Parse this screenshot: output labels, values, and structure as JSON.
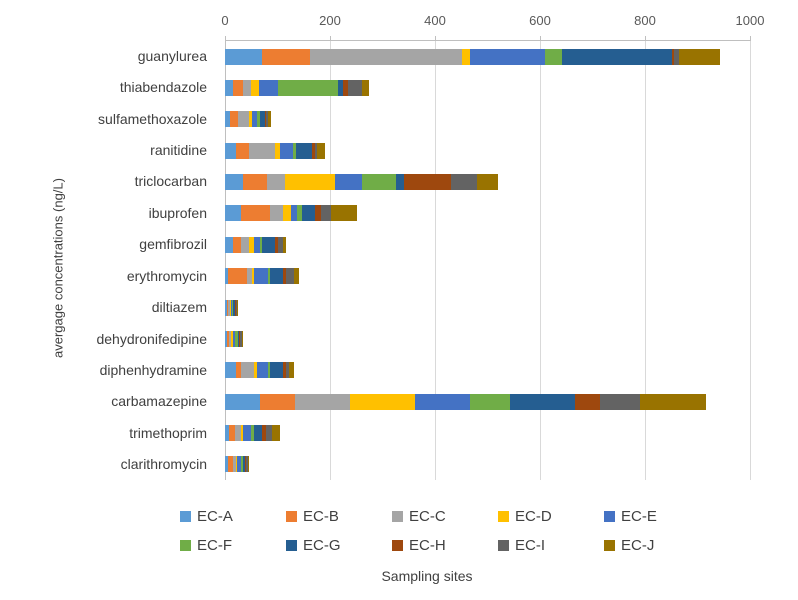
{
  "chart_data": {
    "type": "bar",
    "orientation": "horizontal-stacked",
    "title": "",
    "ylabel": "avergage concentrations (ng/L)",
    "xlabel": "Sampling sites",
    "xlim": [
      0,
      1000
    ],
    "x_ticks": [
      0,
      200,
      400,
      600,
      800,
      1000
    ],
    "grid": "vertical-major",
    "legend_position": "bottom",
    "categories": [
      "guanylurea",
      "thiabendazole",
      "sulfamethoxazole",
      "ranitidine",
      "triclocarban",
      "ibuprofen",
      "gemfibrozil",
      "erythromycin",
      "diltiazem",
      "dehydronifedipine",
      "diphenhydramine",
      "carbamazepine",
      "trimethoprim",
      "clarithromycin"
    ],
    "series": [
      {
        "name": "EC-A",
        "color": "#5B9BD5",
        "values": [
          70,
          15,
          10,
          20,
          35,
          30,
          15,
          6,
          3,
          4,
          20,
          67,
          8,
          5
        ]
      },
      {
        "name": "EC-B",
        "color": "#ED7D31",
        "values": [
          92,
          20,
          15,
          25,
          45,
          55,
          15,
          35,
          3,
          4,
          10,
          66,
          12,
          10
        ]
      },
      {
        "name": "EC-C",
        "color": "#A5A5A5",
        "values": [
          289,
          15,
          20,
          50,
          35,
          25,
          15,
          10,
          3,
          4,
          25,
          105,
          10,
          5
        ]
      },
      {
        "name": "EC-D",
        "color": "#FFC000",
        "values": [
          16,
          15,
          6,
          10,
          95,
          15,
          10,
          5,
          2,
          3,
          6,
          124,
          5,
          3
        ]
      },
      {
        "name": "EC-E",
        "color": "#4472C4",
        "values": [
          143,
          35,
          10,
          25,
          50,
          12,
          12,
          25,
          3,
          4,
          20,
          105,
          15,
          8
        ]
      },
      {
        "name": "EC-F",
        "color": "#70AD47",
        "values": [
          32,
          115,
          5,
          6,
          65,
          10,
          4,
          5,
          2,
          5,
          5,
          76,
          5,
          3
        ]
      },
      {
        "name": "EC-G",
        "color": "#255E91",
        "values": [
          209,
          10,
          10,
          30,
          15,
          25,
          25,
          25,
          3,
          3,
          25,
          124,
          15,
          5
        ]
      },
      {
        "name": "EC-H",
        "color": "#9E480E",
        "values": [
          5,
          10,
          3,
          5,
          90,
          10,
          5,
          6,
          2,
          2,
          5,
          48,
          8,
          2
        ]
      },
      {
        "name": "EC-I",
        "color": "#636363",
        "values": [
          8,
          25,
          3,
          5,
          50,
          20,
          10,
          14,
          2,
          3,
          6,
          76,
          12,
          2
        ]
      },
      {
        "name": "EC-J",
        "color": "#997300",
        "values": [
          79,
          15,
          5,
          15,
          40,
          50,
          5,
          10,
          2,
          3,
          10,
          125,
          15,
          2
        ]
      }
    ]
  }
}
